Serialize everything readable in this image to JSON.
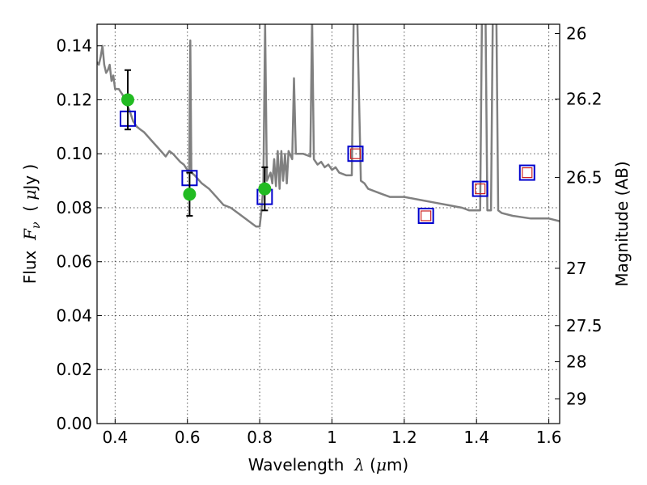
{
  "chart_data": {
    "type": "scatter",
    "x_range": [
      0.35,
      1.63
    ],
    "y_range": [
      0.0,
      0.148
    ],
    "x_ticks": [
      {
        "value": 0.4,
        "label": "0.4"
      },
      {
        "value": 0.6,
        "label": "0.6"
      },
      {
        "value": 0.8,
        "label": "0.8"
      },
      {
        "value": 1.0,
        "label": "1"
      },
      {
        "value": 1.2,
        "label": "1.2"
      },
      {
        "value": 1.4,
        "label": "1.4"
      },
      {
        "value": 1.6,
        "label": "1.6"
      }
    ],
    "y_ticks": [
      {
        "value": 0.0,
        "label": "0.00"
      },
      {
        "value": 0.02,
        "label": "0.02"
      },
      {
        "value": 0.04,
        "label": "0.04"
      },
      {
        "value": 0.06,
        "label": "0.06"
      },
      {
        "value": 0.08,
        "label": "0.08"
      },
      {
        "value": 0.1,
        "label": "0.10"
      },
      {
        "value": 0.12,
        "label": "0.12"
      },
      {
        "value": 0.14,
        "label": "0.14"
      }
    ],
    "right_ticks": [
      {
        "mag": 26,
        "label": "26"
      },
      {
        "mag": 26.2,
        "label": "26.2"
      },
      {
        "mag": 26.5,
        "label": "26.5"
      },
      {
        "mag": 27,
        "label": "27"
      },
      {
        "mag": 27.5,
        "label": "27.5"
      },
      {
        "mag": 28,
        "label": "28"
      },
      {
        "mag": 29,
        "label": "29"
      }
    ],
    "xlabel": {
      "prefix": "Wavelength  ",
      "symbol": "λ",
      "suffix": " (",
      "unit_symbol": "μ",
      "unit": "m)"
    },
    "ylabel": {
      "prefix": "Flux  ",
      "symbol": "F",
      "subscript": "ν",
      "suffix": "  ( ",
      "unit_symbol": "μ",
      "unit": "Jy )"
    },
    "ylabel_right": "Magnitude (AB)",
    "grid": true,
    "colors": {
      "model_line": "#808080",
      "observed": "#22bb22",
      "model_box": "#0000cc",
      "model_box_inner": "#cc2222",
      "errorbar": "#000000"
    },
    "model_spectrum": [
      [
        0.35,
        0.134
      ],
      [
        0.355,
        0.133
      ],
      [
        0.36,
        0.136
      ],
      [
        0.365,
        0.14
      ],
      [
        0.37,
        0.133
      ],
      [
        0.375,
        0.13
      ],
      [
        0.38,
        0.131
      ],
      [
        0.385,
        0.133
      ],
      [
        0.39,
        0.127
      ],
      [
        0.395,
        0.129
      ],
      [
        0.4,
        0.124
      ],
      [
        0.41,
        0.124
      ],
      [
        0.42,
        0.122
      ],
      [
        0.43,
        0.119
      ],
      [
        0.44,
        0.116
      ],
      [
        0.45,
        0.112
      ],
      [
        0.46,
        0.11
      ],
      [
        0.47,
        0.109
      ],
      [
        0.48,
        0.108
      ],
      [
        0.5,
        0.105
      ],
      [
        0.52,
        0.102
      ],
      [
        0.54,
        0.099
      ],
      [
        0.55,
        0.101
      ],
      [
        0.56,
        0.1
      ],
      [
        0.58,
        0.097
      ],
      [
        0.59,
        0.096
      ],
      [
        0.6,
        0.094
      ],
      [
        0.605,
        0.094
      ],
      [
        0.608,
        0.142
      ],
      [
        0.611,
        0.093
      ],
      [
        0.62,
        0.092
      ],
      [
        0.64,
        0.089
      ],
      [
        0.66,
        0.087
      ],
      [
        0.68,
        0.084
      ],
      [
        0.7,
        0.081
      ],
      [
        0.72,
        0.08
      ],
      [
        0.74,
        0.078
      ],
      [
        0.76,
        0.076
      ],
      [
        0.78,
        0.074
      ],
      [
        0.79,
        0.073
      ],
      [
        0.8,
        0.073
      ],
      [
        0.805,
        0.079
      ],
      [
        0.81,
        0.088
      ],
      [
        0.815,
        0.148
      ],
      [
        0.82,
        0.09
      ],
      [
        0.83,
        0.093
      ],
      [
        0.835,
        0.089
      ],
      [
        0.84,
        0.098
      ],
      [
        0.845,
        0.088
      ],
      [
        0.85,
        0.101
      ],
      [
        0.855,
        0.087
      ],
      [
        0.86,
        0.101
      ],
      [
        0.865,
        0.09
      ],
      [
        0.87,
        0.1
      ],
      [
        0.875,
        0.089
      ],
      [
        0.88,
        0.101
      ],
      [
        0.89,
        0.098
      ],
      [
        0.895,
        0.128
      ],
      [
        0.9,
        0.1
      ],
      [
        0.92,
        0.1
      ],
      [
        0.94,
        0.099
      ],
      [
        0.945,
        0.15
      ],
      [
        0.95,
        0.098
      ],
      [
        0.96,
        0.096
      ],
      [
        0.97,
        0.097
      ],
      [
        0.98,
        0.095
      ],
      [
        0.99,
        0.096
      ],
      [
        1.0,
        0.094
      ],
      [
        1.01,
        0.095
      ],
      [
        1.02,
        0.093
      ],
      [
        1.04,
        0.092
      ],
      [
        1.055,
        0.092
      ],
      [
        1.06,
        0.15
      ],
      [
        1.07,
        0.15
      ],
      [
        1.08,
        0.09
      ],
      [
        1.09,
        0.089
      ],
      [
        1.1,
        0.087
      ],
      [
        1.12,
        0.086
      ],
      [
        1.14,
        0.085
      ],
      [
        1.16,
        0.084
      ],
      [
        1.2,
        0.084
      ],
      [
        1.24,
        0.083
      ],
      [
        1.28,
        0.082
      ],
      [
        1.32,
        0.081
      ],
      [
        1.36,
        0.08
      ],
      [
        1.38,
        0.079
      ],
      [
        1.41,
        0.079
      ],
      [
        1.415,
        0.15
      ],
      [
        1.425,
        0.15
      ],
      [
        1.43,
        0.079
      ],
      [
        1.44,
        0.079
      ],
      [
        1.445,
        0.15
      ],
      [
        1.455,
        0.15
      ],
      [
        1.46,
        0.079
      ],
      [
        1.47,
        0.078
      ],
      [
        1.5,
        0.077
      ],
      [
        1.55,
        0.076
      ],
      [
        1.6,
        0.076
      ],
      [
        1.63,
        0.075
      ]
    ],
    "observed_points": [
      {
        "x": 0.435,
        "y": 0.12,
        "yerr": 0.011
      },
      {
        "x": 0.606,
        "y": 0.085,
        "yerr": 0.008
      },
      {
        "x": 0.814,
        "y": 0.087,
        "yerr": 0.008
      }
    ],
    "model_photometry": [
      {
        "x": 0.435,
        "y": 0.113,
        "inner": false
      },
      {
        "x": 0.606,
        "y": 0.091,
        "inner": false
      },
      {
        "x": 0.814,
        "y": 0.084,
        "inner": false
      },
      {
        "x": 1.065,
        "y": 0.1,
        "inner": true
      },
      {
        "x": 1.26,
        "y": 0.077,
        "inner": true
      },
      {
        "x": 1.41,
        "y": 0.087,
        "inner": true
      },
      {
        "x": 1.54,
        "y": 0.093,
        "inner": true
      }
    ]
  }
}
